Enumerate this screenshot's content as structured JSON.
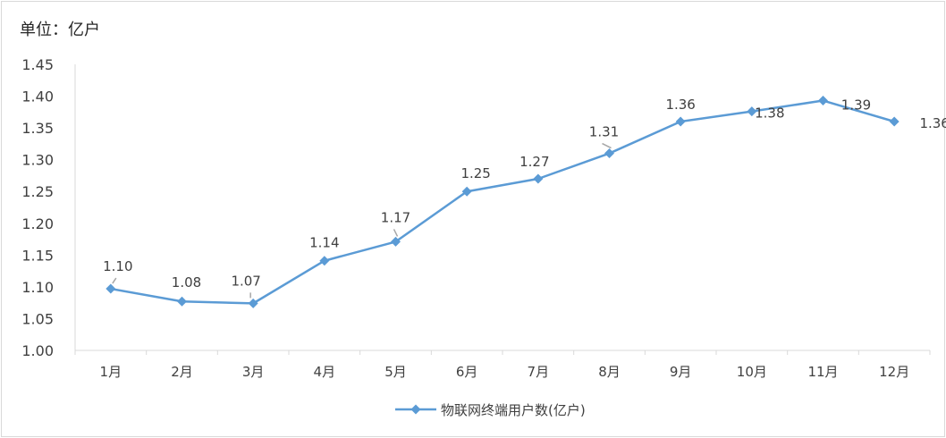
{
  "unit_label": "单位：亿户",
  "chart_data": {
    "type": "line",
    "title": "",
    "xlabel": "",
    "ylabel": "单位：亿户",
    "categories": [
      "1月",
      "2月",
      "3月",
      "4月",
      "5月",
      "6月",
      "7月",
      "8月",
      "9月",
      "10月",
      "11月",
      "12月"
    ],
    "series": [
      {
        "name": "物联网终端用户数(亿户)",
        "values": [
          1.097,
          1.077,
          1.074,
          1.141,
          1.171,
          1.25,
          1.27,
          1.31,
          1.36,
          1.376,
          1.393,
          1.36
        ],
        "labels": [
          "1.10",
          "1.08",
          "1.07",
          "1.14",
          "1.17",
          "1.25",
          "1.27",
          "1.31",
          "1.36",
          "1.38",
          "1.39",
          "1.36"
        ],
        "color": "#5b9bd5"
      }
    ],
    "ylim": [
      1.0,
      1.45
    ],
    "yticks": [
      "1.00",
      "1.05",
      "1.10",
      "1.15",
      "1.20",
      "1.25",
      "1.30",
      "1.35",
      "1.40",
      "1.45"
    ],
    "grid": false,
    "legend_position": "bottom"
  }
}
